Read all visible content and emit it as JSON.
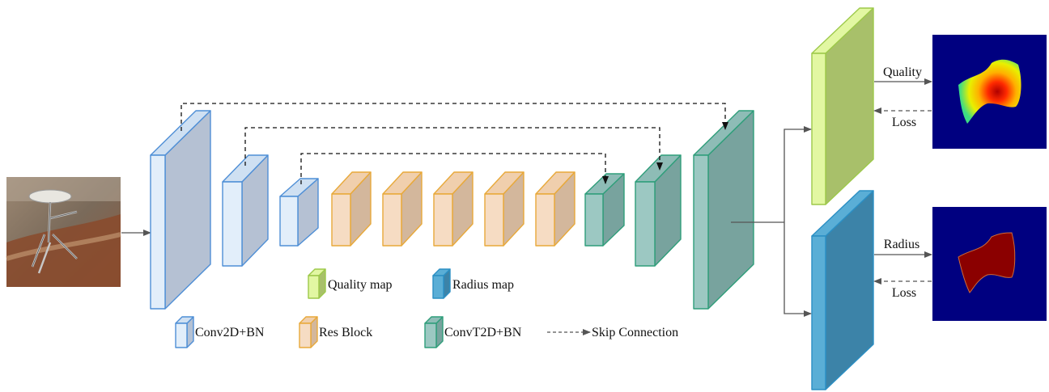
{
  "colors": {
    "conv_front": "#e2eefa",
    "conv_side": "#b5c1d3",
    "conv_top": "#cfe0f2",
    "conv_edge": "#4f8fd6",
    "res_front": "#f6dcc3",
    "res_side": "#d3b79c",
    "res_top": "#f0cfad",
    "res_edge": "#e8a93a",
    "convt_front": "#9cc8c2",
    "convt_side": "#78a39e",
    "convt_top": "#8ebcb6",
    "convt_edge": "#2f9e7a",
    "quality_front": "#e2f7a2",
    "quality_side": "#a8c06a",
    "quality_edge": "#9dc94a",
    "radius_front": "#5aaed6",
    "radius_side": "#3c83a8",
    "radius_edge": "#2b8fc4",
    "arrow": "#555555",
    "map_bg": "#000080"
  },
  "icons": {
    "input": "photo-of-metal-stand-icon",
    "quality_output": "quality-heatmap-icon",
    "radius_output": "radius-mask-icon"
  },
  "legend": {
    "conv": "Conv2D+BN",
    "res": "Res Block",
    "convt": "ConvT2D+BN",
    "skip": "Skip Connection",
    "quality_map": "Quality map",
    "radius_map": "Radius map"
  },
  "labels": {
    "quality": "Quality",
    "radius": "Radius",
    "loss_top": "Loss",
    "loss_bottom": "Loss"
  }
}
